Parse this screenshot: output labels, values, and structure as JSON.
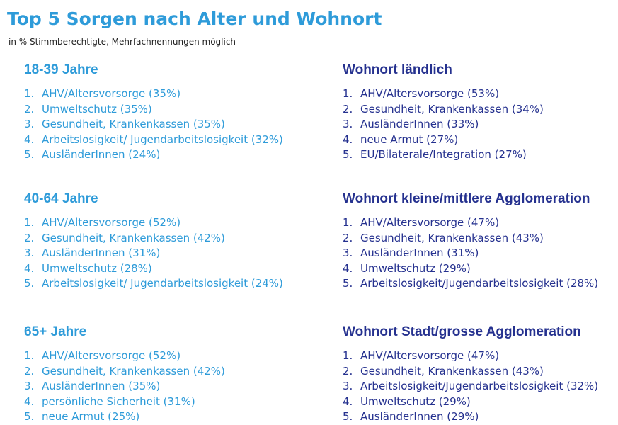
{
  "title": "Top 5 Sorgen nach Alter und Wohnort",
  "subtitle": "in % Stimmberechtigte, Mehrfachnennungen möglich",
  "sections": [
    {
      "heading": "18-39 Jahre",
      "items": [
        {
          "num": "1.",
          "text": "AHV/Altersvorsorge (35%)"
        },
        {
          "num": "2.",
          "text": "Umweltschutz (35%)"
        },
        {
          "num": "3.",
          "text": "Gesundheit, Krankenkassen (35%)"
        },
        {
          "num": "4.",
          "text": "Arbeitslosigkeit/ Jugendarbeitslosigkeit (32%)"
        },
        {
          "num": "5.",
          "text": "AusländerInnen (24%)"
        }
      ]
    },
    {
      "heading": "40-64 Jahre",
      "items": [
        {
          "num": "1.",
          "text": "AHV/Altersvorsorge (52%)"
        },
        {
          "num": "2.",
          "text": "Gesundheit, Krankenkassen (42%)"
        },
        {
          "num": "3.",
          "text": "AusländerInnen (31%)"
        },
        {
          "num": "4.",
          "text": "Umweltschutz (28%)"
        },
        {
          "num": "5.",
          "text": "Arbeitslosigkeit/ Jugendarbeitslosigkeit (24%)"
        }
      ]
    },
    {
      "heading": "65+ Jahre",
      "items": [
        {
          "num": "1.",
          "text": "AHV/Altersvorsorge (52%)"
        },
        {
          "num": "2.",
          "text": "Gesundheit, Krankenkassen (42%)"
        },
        {
          "num": "3.",
          "text": "AusländerInnen (35%)"
        },
        {
          "num": "4.",
          "text": "persönliche Sicherheit (31%)"
        },
        {
          "num": "5.",
          "text": "neue Armut (25%)"
        }
      ]
    },
    {
      "heading": "Wohnort ländlich",
      "items": [
        {
          "num": "1.",
          "text": "AHV/Altersvorsorge (53%)"
        },
        {
          "num": "2.",
          "text": "Gesundheit, Krankenkassen (34%)"
        },
        {
          "num": "3.",
          "text": "AusländerInnen (33%)"
        },
        {
          "num": "4.",
          "text": "neue Armut (27%)"
        },
        {
          "num": "5.",
          "text": "EU/Bilaterale/Integration (27%)"
        }
      ]
    },
    {
      "heading": "Wohnort kleine/mittlere Agglomeration",
      "items": [
        {
          "num": "1.",
          "text": "AHV/Altersvorsorge (47%)"
        },
        {
          "num": "2.",
          "text": "Gesundheit, Krankenkassen (43%)"
        },
        {
          "num": "3.",
          "text": "AusländerInnen (31%)"
        },
        {
          "num": "4.",
          "text": "Umweltschutz (29%)"
        },
        {
          "num": "5.",
          "text": "Arbeitslosigkeit/Jugendarbeitslosigkeit (28%)"
        }
      ]
    },
    {
      "heading": "Wohnort Stadt/grosse Agglomeration",
      "items": [
        {
          "num": "1.",
          "text": "AHV/Altersvorsorge (47%)"
        },
        {
          "num": "2.",
          "text": "Gesundheit, Krankenkassen (43%)"
        },
        {
          "num": "3.",
          "text": "Arbeitslosigkeit/Jugendarbeitslosigkeit (32%)"
        },
        {
          "num": "4.",
          "text": "Umweltschutz (29%)"
        },
        {
          "num": "5.",
          "text": "AusländerInnen (29%)"
        }
      ]
    }
  ]
}
